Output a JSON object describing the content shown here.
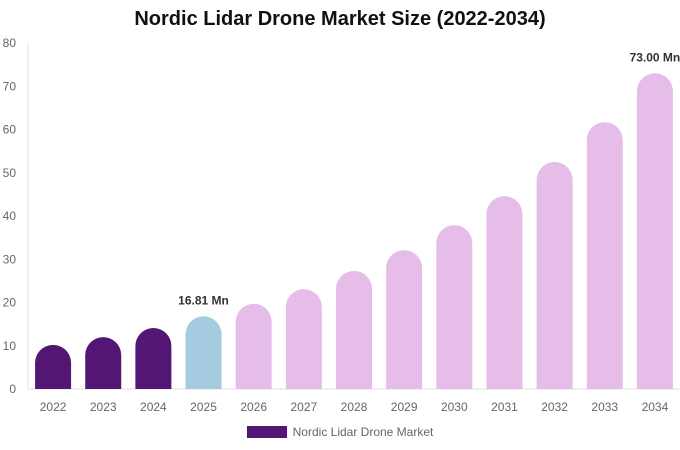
{
  "chart_data": {
    "type": "bar",
    "title": "Nordic Lidar Drone Market Size (2022-2034)",
    "categories": [
      "2022",
      "2023",
      "2024",
      "2025",
      "2026",
      "2027",
      "2028",
      "2029",
      "2030",
      "2031",
      "2032",
      "2033",
      "2034"
    ],
    "series": [
      {
        "name": "Nordic Lidar Drone Market",
        "values": [
          10.2,
          12.0,
          14.1,
          16.81,
          19.7,
          23.1,
          27.3,
          32.1,
          37.9,
          44.6,
          52.5,
          61.7,
          73.0
        ]
      }
    ],
    "bar_colors": [
      "#541675",
      "#541675",
      "#541675",
      "#a4cbe0",
      "#e6bde9",
      "#e6bde9",
      "#e6bde9",
      "#e6bde9",
      "#e6bde9",
      "#e6bde9",
      "#e6bde9",
      "#e6bde9",
      "#e6bde9"
    ],
    "data_labels": {
      "3": "16.81 Mn",
      "12": "73.00 Mn"
    },
    "yticks": [
      "0",
      "10",
      "20",
      "30",
      "40",
      "50",
      "60",
      "70",
      "80"
    ],
    "ylim": [
      0,
      80
    ],
    "grid": false,
    "legend": "bottom",
    "legend_color": "#541675"
  }
}
